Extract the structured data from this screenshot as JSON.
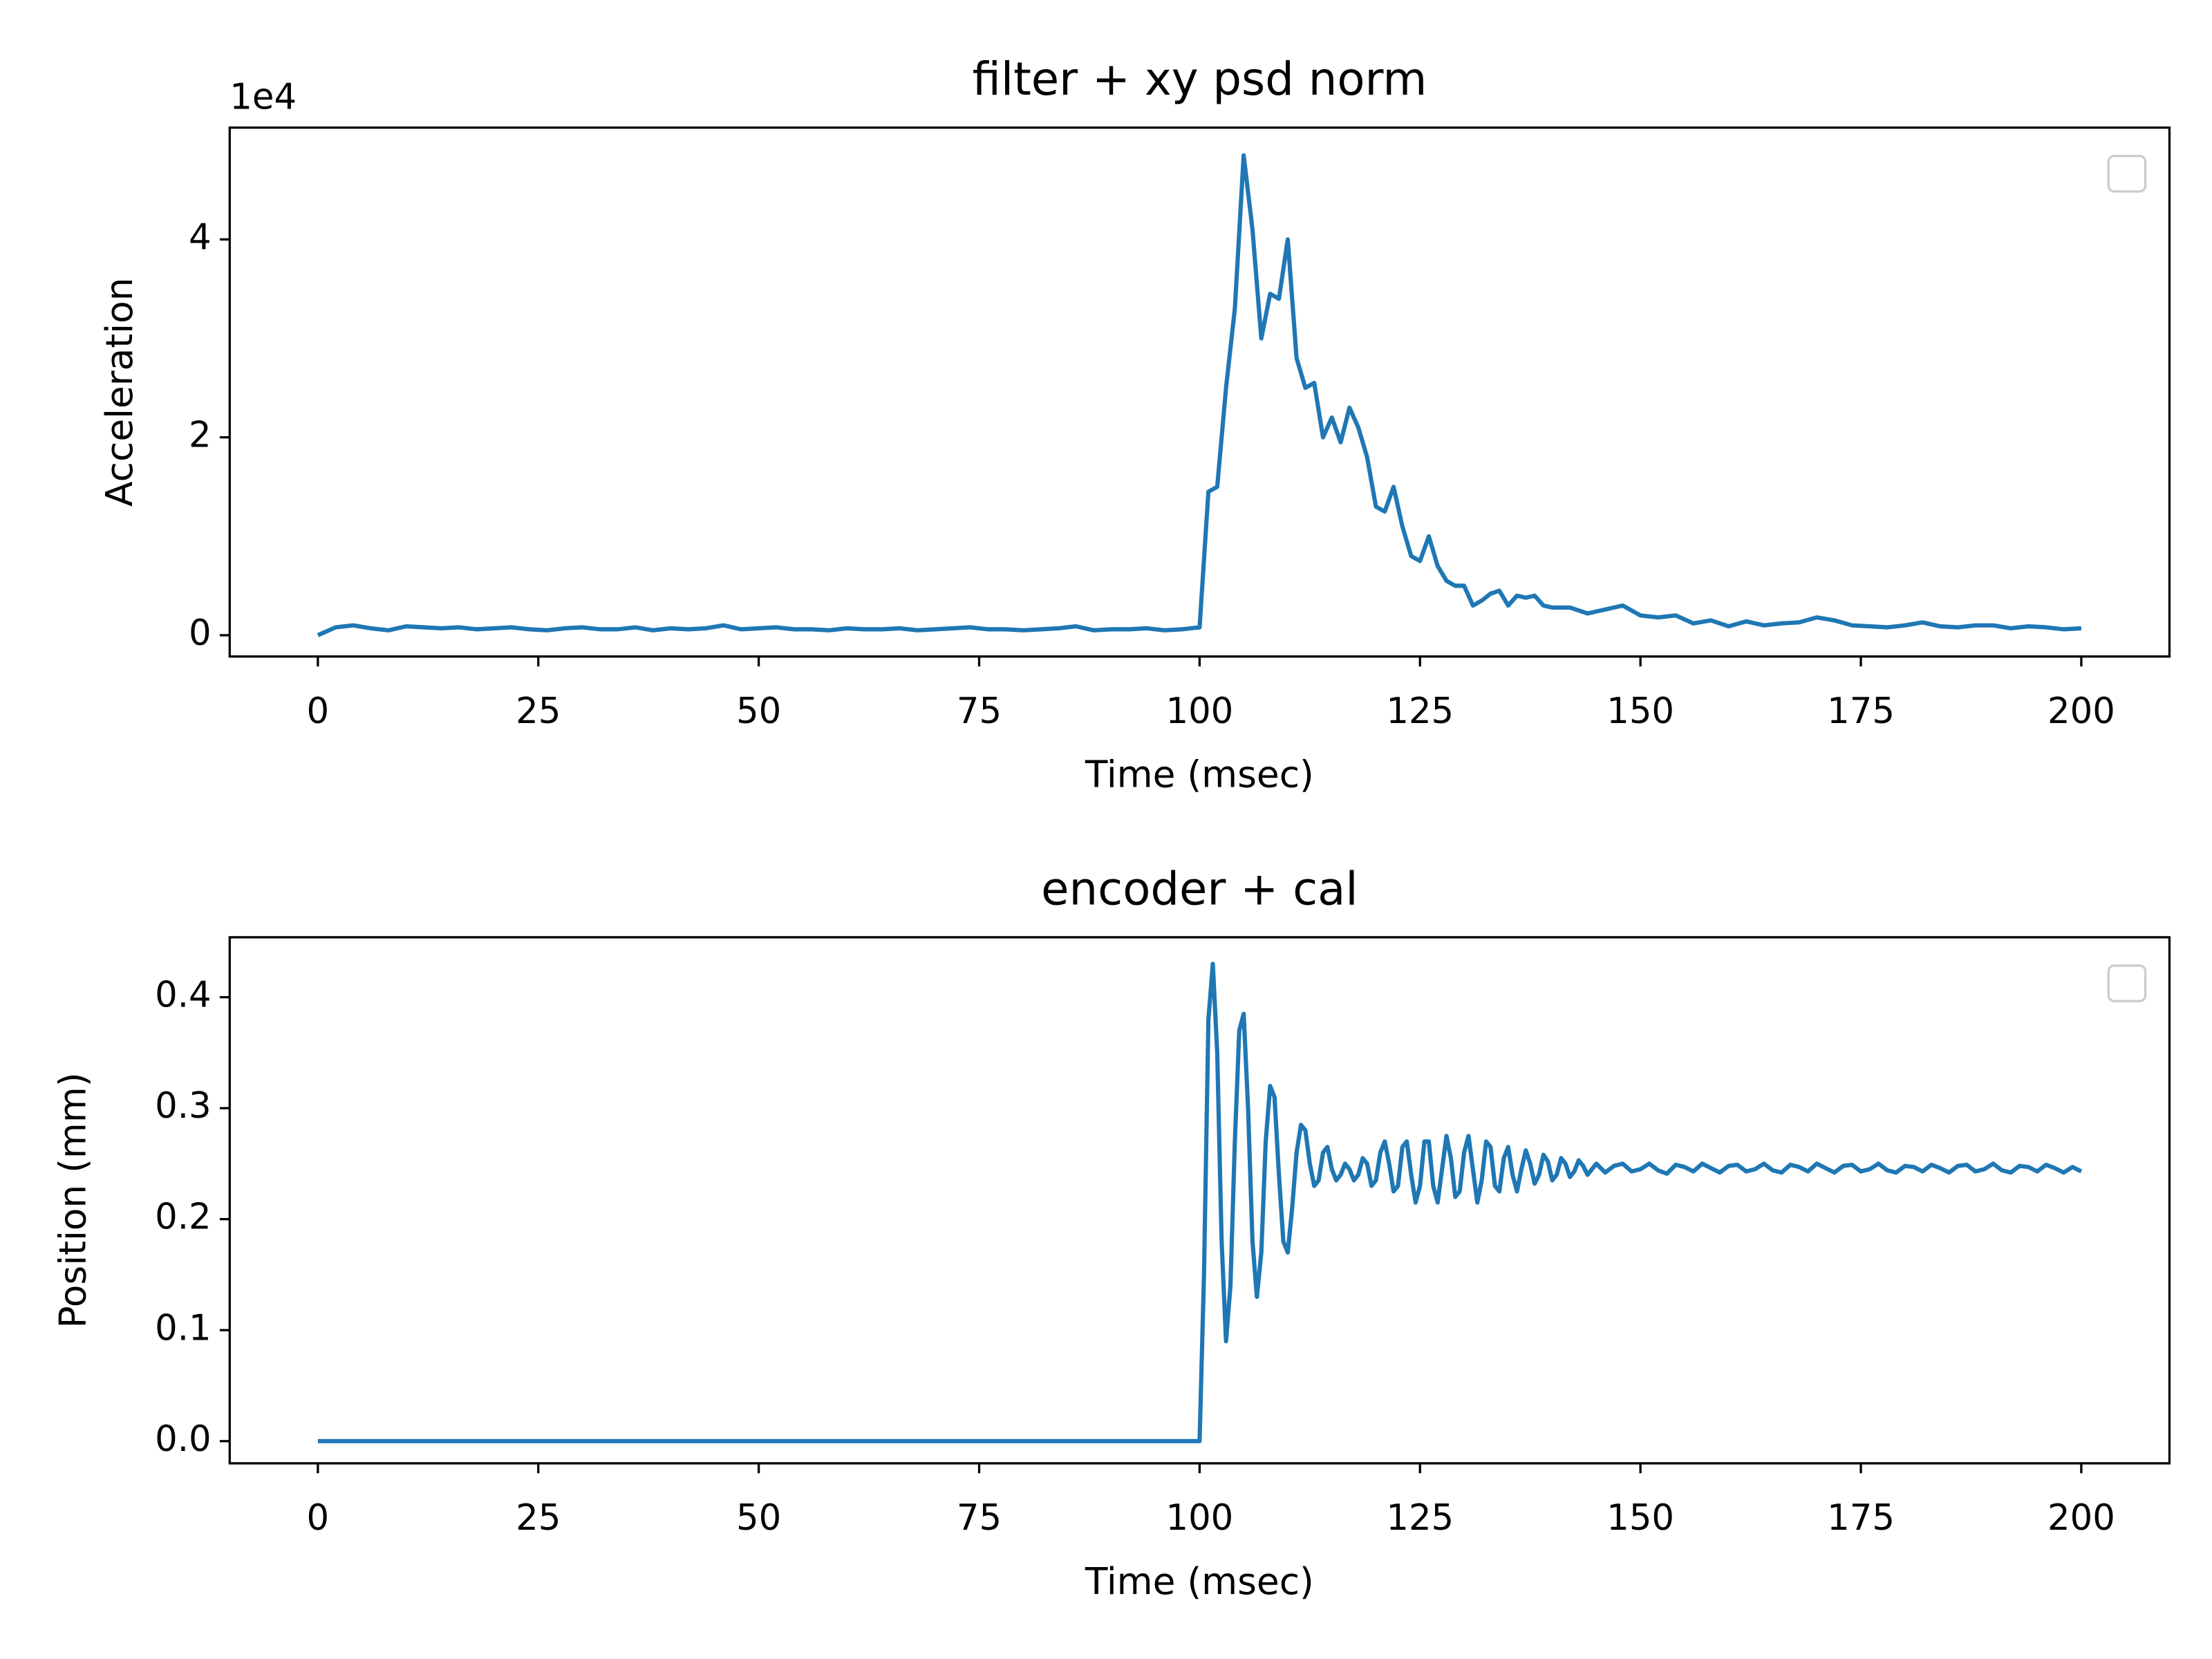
{
  "chart_data": [
    {
      "type": "line",
      "title": "filter + xy psd norm",
      "xlabel": "Time (msec)",
      "ylabel": "Acceleration",
      "y_offset_text": "1e4",
      "xlim": [
        -10,
        210
      ],
      "ylim": [
        -0.215,
        5.13
      ],
      "xticks": [
        0,
        25,
        50,
        75,
        100,
        125,
        150,
        175,
        200
      ],
      "yticks": [
        0,
        2,
        4
      ],
      "legend": "upper right",
      "x": [
        0,
        2,
        4,
        6,
        8,
        10,
        12,
        14,
        16,
        18,
        20,
        22,
        24,
        26,
        28,
        30,
        32,
        34,
        36,
        38,
        40,
        42,
        44,
        46,
        48,
        50,
        52,
        54,
        56,
        58,
        60,
        62,
        64,
        66,
        68,
        70,
        72,
        74,
        76,
        78,
        80,
        82,
        84,
        86,
        88,
        90,
        92,
        94,
        96,
        98,
        99,
        100,
        101,
        102,
        103,
        104,
        105,
        106,
        107,
        108,
        109,
        110,
        111,
        112,
        113,
        114,
        115,
        116,
        117,
        118,
        119,
        120,
        121,
        122,
        123,
        124,
        125,
        126,
        127,
        128,
        129,
        130,
        131,
        132,
        133,
        134,
        135,
        136,
        137,
        138,
        139,
        140,
        142,
        144,
        146,
        148,
        150,
        152,
        154,
        156,
        158,
        160,
        162,
        164,
        166,
        168,
        170,
        172,
        174,
        176,
        178,
        180,
        182,
        184,
        186,
        188,
        190,
        192,
        194,
        196,
        198,
        200
      ],
      "series": [
        {
          "color": "#1f77b4",
          "values": [
            0.0,
            0.08,
            0.1,
            0.07,
            0.05,
            0.09,
            0.08,
            0.07,
            0.08,
            0.06,
            0.07,
            0.08,
            0.06,
            0.05,
            0.07,
            0.08,
            0.06,
            0.06,
            0.08,
            0.05,
            0.07,
            0.06,
            0.07,
            0.1,
            0.06,
            0.07,
            0.08,
            0.06,
            0.06,
            0.05,
            0.07,
            0.06,
            0.06,
            0.07,
            0.05,
            0.06,
            0.07,
            0.08,
            0.06,
            0.06,
            0.05,
            0.06,
            0.07,
            0.09,
            0.05,
            0.06,
            0.06,
            0.07,
            0.05,
            0.06,
            0.07,
            0.08,
            1.45,
            1.5,
            2.5,
            3.3,
            4.85,
            4.1,
            3.0,
            3.45,
            3.4,
            4.0,
            2.8,
            2.5,
            2.55,
            2.0,
            2.2,
            1.95,
            2.3,
            2.1,
            1.8,
            1.3,
            1.25,
            1.5,
            1.1,
            0.8,
            0.75,
            1.0,
            0.7,
            0.55,
            0.5,
            0.5,
            0.3,
            0.35,
            0.42,
            0.45,
            0.3,
            0.4,
            0.38,
            0.4,
            0.3,
            0.28,
            0.28,
            0.22,
            0.26,
            0.3,
            0.2,
            0.18,
            0.2,
            0.12,
            0.15,
            0.09,
            0.14,
            0.1,
            0.12,
            0.13,
            0.18,
            0.15,
            0.1,
            0.09,
            0.08,
            0.1,
            0.13,
            0.09,
            0.08,
            0.1,
            0.1,
            0.07,
            0.09,
            0.08,
            0.06,
            0.07
          ]
        }
      ]
    },
    {
      "type": "line",
      "title": "encoder + cal",
      "xlabel": "Time (msec)",
      "ylabel": "Position (mm)",
      "xlim": [
        -10,
        210
      ],
      "ylim": [
        -0.02,
        0.454
      ],
      "xticks": [
        0,
        25,
        50,
        75,
        100,
        125,
        150,
        175,
        200
      ],
      "yticks": [
        {
          "value": 0,
          "label": "0.0"
        },
        0.1,
        0.2,
        0.3,
        0.4
      ],
      "legend": "upper right",
      "x": [
        0,
        100,
        100.5,
        101,
        101.5,
        102,
        102.5,
        103,
        103.5,
        104,
        104.5,
        105,
        105.5,
        106,
        106.5,
        107,
        107.5,
        108,
        108.5,
        109,
        109.5,
        110,
        110.5,
        111,
        111.5,
        112,
        112.5,
        113,
        113.5,
        114,
        114.5,
        115,
        115.5,
        116,
        116.5,
        117,
        117.5,
        118,
        118.5,
        119,
        119.5,
        120,
        120.5,
        121,
        121.5,
        122,
        122.5,
        123,
        123.5,
        124,
        124.5,
        125,
        125.5,
        126,
        126.5,
        127,
        127.5,
        128,
        128.5,
        129,
        129.5,
        130,
        130.5,
        131,
        131.5,
        132,
        132.5,
        133,
        133.5,
        134,
        134.5,
        135,
        135.5,
        136,
        136.5,
        137,
        137.5,
        138,
        138.5,
        139,
        139.5,
        140,
        140.5,
        141,
        141.5,
        142,
        142.5,
        143,
        143.5,
        144,
        144.5,
        145,
        146,
        147,
        148,
        149,
        150,
        151,
        152,
        153,
        154,
        155,
        156,
        157,
        158,
        159,
        160,
        161,
        162,
        163,
        164,
        165,
        166,
        167,
        168,
        169,
        170,
        171,
        172,
        173,
        174,
        175,
        176,
        177,
        178,
        179,
        180,
        181,
        182,
        183,
        184,
        185,
        186,
        187,
        188,
        189,
        190,
        191,
        192,
        193,
        194,
        195,
        196,
        197,
        198,
        199,
        200
      ],
      "series": [
        {
          "color": "#1f77b4",
          "values": [
            0,
            0,
            0.15,
            0.38,
            0.43,
            0.35,
            0.18,
            0.09,
            0.14,
            0.27,
            0.37,
            0.385,
            0.3,
            0.18,
            0.13,
            0.17,
            0.27,
            0.32,
            0.31,
            0.24,
            0.18,
            0.17,
            0.21,
            0.26,
            0.285,
            0.28,
            0.25,
            0.23,
            0.235,
            0.26,
            0.265,
            0.245,
            0.235,
            0.24,
            0.25,
            0.245,
            0.235,
            0.24,
            0.255,
            0.25,
            0.23,
            0.235,
            0.26,
            0.27,
            0.25,
            0.225,
            0.23,
            0.265,
            0.27,
            0.24,
            0.215,
            0.23,
            0.27,
            0.27,
            0.23,
            0.215,
            0.245,
            0.275,
            0.255,
            0.22,
            0.225,
            0.26,
            0.275,
            0.245,
            0.215,
            0.235,
            0.27,
            0.265,
            0.23,
            0.225,
            0.255,
            0.265,
            0.24,
            0.225,
            0.245,
            0.262,
            0.25,
            0.232,
            0.24,
            0.258,
            0.252,
            0.235,
            0.24,
            0.255,
            0.25,
            0.238,
            0.243,
            0.253,
            0.248,
            0.24,
            0.245,
            0.25,
            0.242,
            0.248,
            0.25,
            0.243,
            0.245,
            0.25,
            0.244,
            0.241,
            0.249,
            0.247,
            0.243,
            0.25,
            0.246,
            0.242,
            0.248,
            0.249,
            0.243,
            0.245,
            0.25,
            0.244,
            0.242,
            0.249,
            0.247,
            0.243,
            0.25,
            0.246,
            0.242,
            0.248,
            0.249,
            0.243,
            0.245,
            0.25,
            0.244,
            0.242,
            0.248,
            0.247,
            0.243,
            0.249,
            0.246,
            0.242,
            0.248,
            0.249,
            0.243,
            0.245,
            0.25,
            0.244,
            0.242,
            0.248,
            0.247,
            0.243,
            0.249,
            0.246,
            0.242,
            0.247,
            0.243
          ]
        }
      ]
    }
  ]
}
